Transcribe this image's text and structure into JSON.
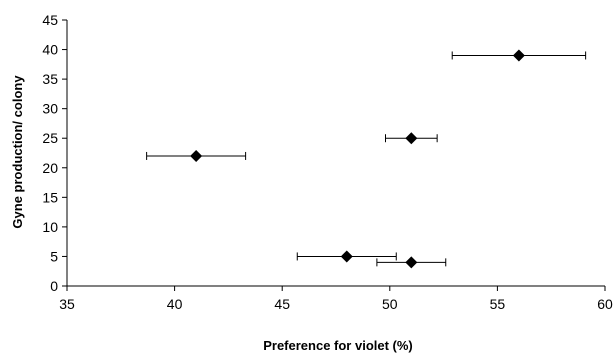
{
  "chart_data": {
    "type": "scatter",
    "title": "",
    "xlabel": "Preference for violet (%)",
    "ylabel": "Gyne production/ colony",
    "xlim": [
      35,
      60
    ],
    "ylim": [
      0,
      45
    ],
    "x_ticks": [
      35,
      40,
      45,
      50,
      55,
      60
    ],
    "y_ticks": [
      0,
      5,
      10,
      15,
      20,
      25,
      30,
      35,
      40,
      45
    ],
    "grid": false,
    "legend": false,
    "marker": "diamond",
    "marker_color": "#000000",
    "points": [
      {
        "x": 41.0,
        "y": 22,
        "x_err_low": 38.7,
        "x_err_high": 43.3
      },
      {
        "x": 48.0,
        "y": 5,
        "x_err_low": 45.7,
        "x_err_high": 50.3
      },
      {
        "x": 51.0,
        "y": 4,
        "x_err_low": 49.4,
        "x_err_high": 52.6
      },
      {
        "x": 51.0,
        "y": 25,
        "x_err_low": 49.8,
        "x_err_high": 52.2
      },
      {
        "x": 56.0,
        "y": 39,
        "x_err_low": 52.9,
        "x_err_high": 59.1
      }
    ]
  }
}
